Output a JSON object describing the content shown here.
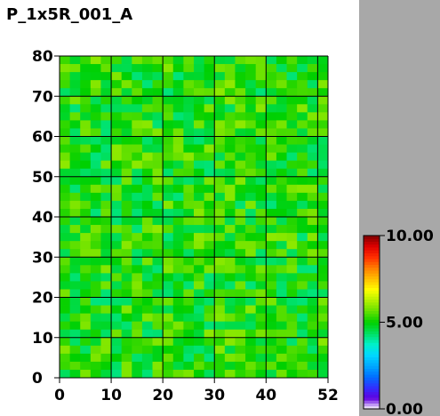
{
  "chart_data": {
    "type": "heatmap",
    "title": "P_1x5R_001_A",
    "xlim": [
      0,
      52
    ],
    "ylim": [
      0,
      80
    ],
    "x_ticks": [
      0,
      10,
      20,
      30,
      40,
      52
    ],
    "y_ticks": [
      0,
      10,
      20,
      30,
      40,
      50,
      60,
      70,
      80
    ],
    "grid_x": [
      0,
      10,
      20,
      30,
      40,
      50,
      52
    ],
    "grid_y": [
      0,
      10,
      20,
      30,
      40,
      50,
      60,
      70,
      80
    ],
    "grid": true,
    "cell_rows": 40,
    "cell_cols": 26,
    "value_range": [
      4.2,
      6.0
    ],
    "colorbar": {
      "min": 0.0,
      "max": 10.0,
      "labels": [
        "10.00",
        "5.00",
        "0.00"
      ],
      "label_values": [
        10.0,
        5.0,
        0.0
      ],
      "colors": [
        "#ffffff",
        "#6000e0",
        "#3030ff",
        "#0070ff",
        "#00a8ff",
        "#00d8ff",
        "#00f0c8",
        "#00e060",
        "#00d000",
        "#60e000",
        "#b0f000",
        "#ffff00",
        "#ffc000",
        "#ff8000",
        "#ff3000",
        "#e00000",
        "#800000"
      ]
    }
  }
}
